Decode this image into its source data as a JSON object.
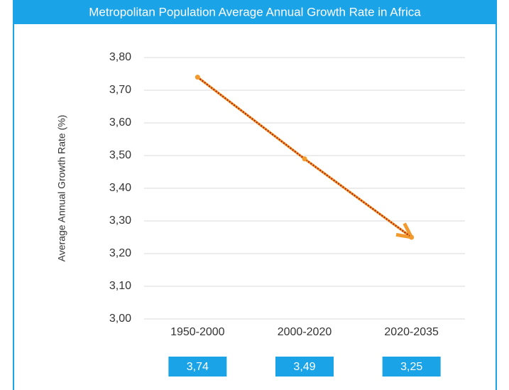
{
  "chart_data": {
    "type": "line",
    "title": "Metropolitan Population Average Annual Growth Rate in Africa",
    "y_label": "Average Annual Growth Rate (%)",
    "categories": [
      "1950-2000",
      "2000-2020",
      "2020-2035"
    ],
    "series": [
      {
        "name": "Average Annual Growth Rate",
        "color": "#f39a2e",
        "values": [
          3.74,
          3.49,
          3.25
        ],
        "value_labels": [
          "3,74",
          "3,49",
          "3,25"
        ]
      }
    ],
    "ylim": [
      3.0,
      3.8
    ],
    "yticks": [
      {
        "value": 3.0,
        "label": "3,00"
      },
      {
        "value": 3.1,
        "label": "3,10"
      },
      {
        "value": 3.2,
        "label": "3,20"
      },
      {
        "value": 3.3,
        "label": "3,30"
      },
      {
        "value": 3.4,
        "label": "3,40"
      },
      {
        "value": 3.5,
        "label": "3,50"
      },
      {
        "value": 3.6,
        "label": "3,60"
      },
      {
        "value": 3.7,
        "label": "3,70"
      },
      {
        "value": 3.8,
        "label": "3,80"
      }
    ],
    "grid": true,
    "label_box_color": "#1ba3e8"
  }
}
